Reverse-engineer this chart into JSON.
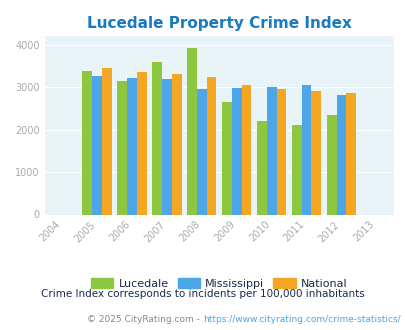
{
  "title": "Lucedale Property Crime Index",
  "years": [
    2005,
    2006,
    2007,
    2008,
    2009,
    2010,
    2011,
    2012
  ],
  "lucedale": [
    3380,
    3150,
    3600,
    3930,
    2660,
    2200,
    2100,
    2350
  ],
  "mississippi": [
    3270,
    3220,
    3185,
    2950,
    2970,
    3010,
    3060,
    2810
  ],
  "national": [
    3450,
    3360,
    3300,
    3230,
    3060,
    2960,
    2920,
    2870
  ],
  "color_lucedale": "#8dc63f",
  "color_mississippi": "#4da6e8",
  "color_national": "#f5a623",
  "xlim": [
    2003.5,
    2013.5
  ],
  "ylim": [
    0,
    4200
  ],
  "yticks": [
    0,
    1000,
    2000,
    3000,
    4000
  ],
  "xticks": [
    2004,
    2005,
    2006,
    2007,
    2008,
    2009,
    2010,
    2011,
    2012,
    2013
  ],
  "bar_width": 0.28,
  "bg_color": "#e8f4f8",
  "legend_labels": [
    "Lucedale",
    "Mississippi",
    "National"
  ],
  "footnote1": "Crime Index corresponds to incidents per 100,000 inhabitants",
  "footnote2_prefix": "© 2025 CityRating.com - ",
  "footnote2_url": "https://www.cityrating.com/crime-statistics/",
  "title_color": "#1a7abf",
  "footnote1_color": "#1a2a4a",
  "footnote2_prefix_color": "#888888",
  "footnote2_url_color": "#4da6e8",
  "legend_text_color": "#1a2a4a",
  "tick_color": "#aaaaaa"
}
